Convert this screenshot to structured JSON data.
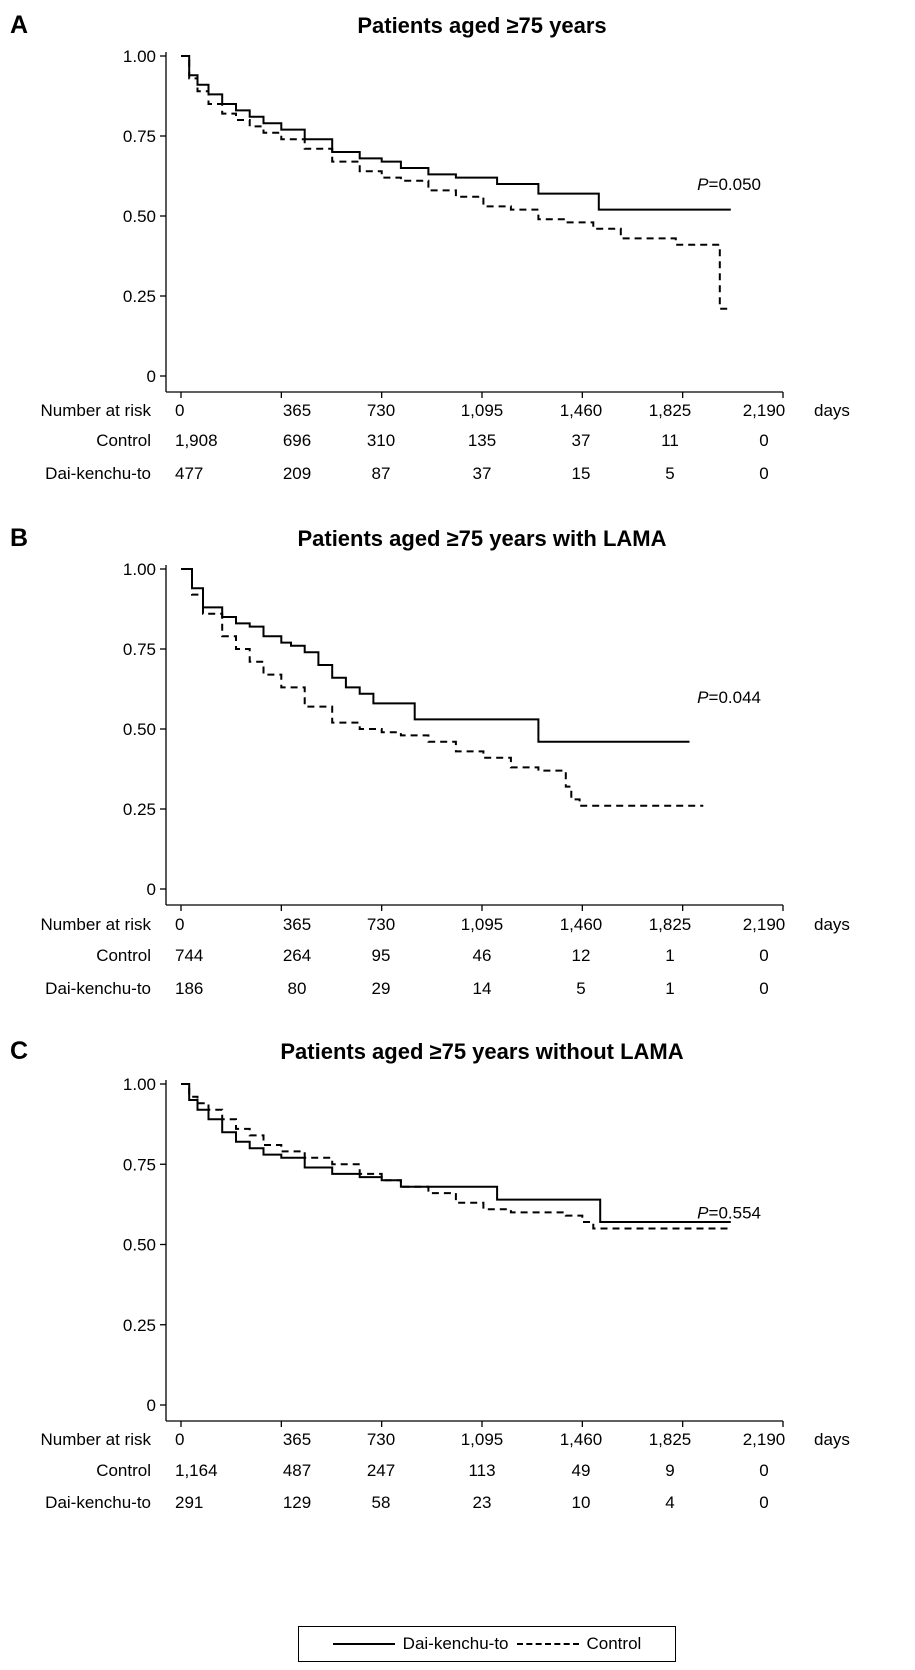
{
  "chart_data": [
    {
      "type": "line",
      "panel_label": "A",
      "title": "Patients aged ≥75 years",
      "xlabel": "",
      "ylabel": "",
      "x_unit": "days",
      "xlim": [
        0,
        2190
      ],
      "ylim": [
        0,
        1
      ],
      "x_ticks": [
        "0",
        "365",
        "730",
        "1,095",
        "1,460",
        "1,825",
        "2,190"
      ],
      "y_ticks": [
        "0",
        "0.25",
        "0.50",
        "0.75",
        "1.00"
      ],
      "p_value_label": "P",
      "p_value": "=0.050",
      "series": [
        {
          "name": "Dai-kenchu-to",
          "style": "solid",
          "x": [
            0,
            30,
            60,
            100,
            150,
            200,
            250,
            300,
            365,
            450,
            550,
            650,
            730,
            800,
            900,
            1000,
            1100,
            1150,
            1250,
            1300,
            1450,
            1520,
            1700,
            2000
          ],
          "y": [
            1.0,
            0.94,
            0.91,
            0.88,
            0.85,
            0.83,
            0.81,
            0.79,
            0.77,
            0.74,
            0.7,
            0.68,
            0.67,
            0.65,
            0.63,
            0.62,
            0.62,
            0.6,
            0.6,
            0.57,
            0.57,
            0.52,
            0.52,
            0.52
          ]
        },
        {
          "name": "Control",
          "style": "dashed",
          "x": [
            0,
            30,
            60,
            100,
            150,
            200,
            250,
            300,
            365,
            450,
            550,
            650,
            730,
            800,
            900,
            1000,
            1100,
            1200,
            1300,
            1400,
            1500,
            1600,
            1700,
            1800,
            1900,
            1950,
            1960,
            1990
          ],
          "y": [
            1.0,
            0.93,
            0.89,
            0.85,
            0.82,
            0.8,
            0.78,
            0.76,
            0.74,
            0.71,
            0.67,
            0.64,
            0.62,
            0.61,
            0.58,
            0.56,
            0.53,
            0.52,
            0.49,
            0.48,
            0.46,
            0.43,
            0.43,
            0.41,
            0.41,
            0.41,
            0.21,
            0.21
          ]
        }
      ],
      "risk_table": {
        "header": "Number at risk",
        "rows": [
          {
            "label": "Control",
            "values": [
              "1,908",
              "696",
              "310",
              "135",
              "37",
              "11",
              "0"
            ]
          },
          {
            "label": "Dai-kenchu-to",
            "values": [
              "477",
              "209",
              "87",
              "37",
              "15",
              "5",
              "0"
            ]
          }
        ]
      }
    },
    {
      "type": "line",
      "panel_label": "B",
      "title": "Patients aged ≥75 years with LAMA",
      "xlabel": "",
      "ylabel": "",
      "x_unit": "days",
      "xlim": [
        0,
        2190
      ],
      "ylim": [
        0,
        1
      ],
      "x_ticks": [
        "0",
        "365",
        "730",
        "1,095",
        "1,460",
        "1,825",
        "2,190"
      ],
      "y_ticks": [
        "0",
        "0.25",
        "0.50",
        "0.75",
        "1.00"
      ],
      "p_value_label": "P",
      "p_value": "=0.044",
      "series": [
        {
          "name": "Dai-kenchu-to",
          "style": "solid",
          "x": [
            0,
            40,
            80,
            150,
            200,
            250,
            300,
            365,
            400,
            450,
            500,
            550,
            600,
            650,
            700,
            800,
            850,
            1000,
            1100,
            1250,
            1300,
            1400,
            1500,
            1600,
            1850
          ],
          "y": [
            1.0,
            0.94,
            0.88,
            0.85,
            0.83,
            0.82,
            0.79,
            0.77,
            0.76,
            0.74,
            0.7,
            0.66,
            0.63,
            0.61,
            0.58,
            0.58,
            0.53,
            0.53,
            0.53,
            0.53,
            0.46,
            0.46,
            0.46,
            0.46,
            0.46
          ]
        },
        {
          "name": "Control",
          "style": "dashed",
          "x": [
            0,
            40,
            80,
            150,
            200,
            250,
            300,
            365,
            450,
            550,
            650,
            730,
            800,
            900,
            1000,
            1100,
            1200,
            1300,
            1350,
            1400,
            1420,
            1450,
            1500,
            1700,
            1900
          ],
          "y": [
            1.0,
            0.92,
            0.86,
            0.79,
            0.75,
            0.71,
            0.67,
            0.63,
            0.57,
            0.52,
            0.5,
            0.49,
            0.48,
            0.46,
            0.43,
            0.41,
            0.38,
            0.37,
            0.37,
            0.32,
            0.28,
            0.26,
            0.26,
            0.26,
            0.26
          ]
        }
      ],
      "risk_table": {
        "header": "Number at risk",
        "rows": [
          {
            "label": "Control",
            "values": [
              "744",
              "264",
              "95",
              "46",
              "12",
              "1",
              "0"
            ]
          },
          {
            "label": "Dai-kenchu-to",
            "values": [
              "186",
              "80",
              "29",
              "14",
              "5",
              "1",
              "0"
            ]
          }
        ]
      }
    },
    {
      "type": "line",
      "panel_label": "C",
      "title": "Patients aged ≥75 years without LAMA",
      "xlabel": "",
      "ylabel": "",
      "x_unit": "days",
      "xlim": [
        0,
        2190
      ],
      "ylim": [
        0,
        1
      ],
      "x_ticks": [
        "0",
        "365",
        "730",
        "1,095",
        "1,460",
        "1,825",
        "2,190"
      ],
      "y_ticks": [
        "0",
        "0.25",
        "0.50",
        "0.75",
        "1.00"
      ],
      "p_value_label": "P",
      "p_value": "=0.554",
      "series": [
        {
          "name": "Dai-kenchu-to",
          "style": "solid",
          "x": [
            0,
            30,
            60,
            100,
            150,
            200,
            250,
            300,
            365,
            450,
            550,
            650,
            730,
            800,
            900,
            1000,
            1100,
            1150,
            1300,
            1460,
            1500,
            1525,
            1700,
            2000
          ],
          "y": [
            1.0,
            0.95,
            0.92,
            0.89,
            0.85,
            0.82,
            0.8,
            0.78,
            0.77,
            0.74,
            0.72,
            0.71,
            0.7,
            0.68,
            0.68,
            0.68,
            0.68,
            0.64,
            0.64,
            0.64,
            0.64,
            0.57,
            0.57,
            0.57
          ]
        },
        {
          "name": "Control",
          "style": "dashed",
          "x": [
            0,
            30,
            60,
            100,
            150,
            200,
            250,
            300,
            365,
            450,
            550,
            650,
            730,
            800,
            900,
            1000,
            1100,
            1200,
            1300,
            1400,
            1460,
            1500,
            1600,
            1800,
            2000
          ],
          "y": [
            1.0,
            0.96,
            0.94,
            0.92,
            0.89,
            0.86,
            0.84,
            0.81,
            0.79,
            0.77,
            0.75,
            0.72,
            0.7,
            0.68,
            0.66,
            0.63,
            0.61,
            0.6,
            0.6,
            0.59,
            0.57,
            0.55,
            0.55,
            0.55,
            0.55
          ]
        }
      ],
      "risk_table": {
        "header": "Number at risk",
        "rows": [
          {
            "label": "Control",
            "values": [
              "1,164",
              "487",
              "247",
              "113",
              "49",
              "9",
              "0"
            ]
          },
          {
            "label": "Dai-kenchu-to",
            "values": [
              "291",
              "129",
              "58",
              "23",
              "10",
              "4",
              "0"
            ]
          }
        ]
      }
    }
  ],
  "legend": {
    "items": [
      {
        "label": "Dai-kenchu-to",
        "style": "solid"
      },
      {
        "label": "Control",
        "style": "dashed"
      }
    ]
  }
}
